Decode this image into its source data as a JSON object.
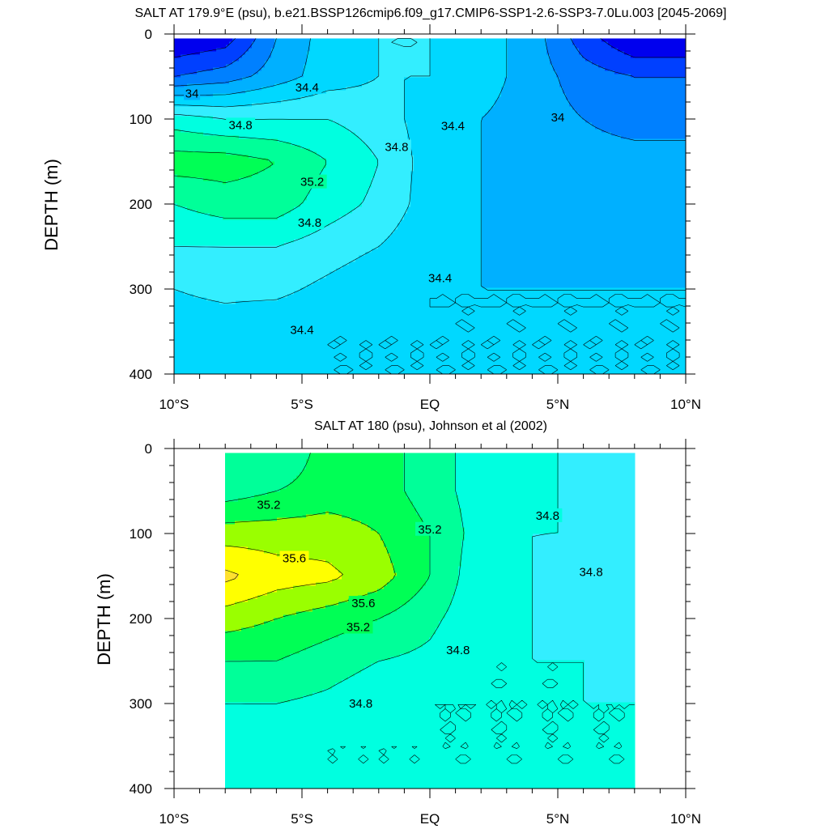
{
  "colors": {
    "c33_6": "#0000ee",
    "c33_8": "#0040ff",
    "c34_0": "#0080ff",
    "c34_2": "#00b0ff",
    "c34_4": "#00d8ff",
    "c34_6": "#33eeff",
    "c34_8": "#00ffe0",
    "c35_0": "#00ff99",
    "c35_2": "#00ff55",
    "c35_4": "#9aff00",
    "c35_6": "#ffff00",
    "c35_8": "#ffe030",
    "c36_0": "#ffc040"
  },
  "chart_data": [
    {
      "type": "contour",
      "title": "SALT AT 179.9°E (psu), b.e21.BSSP126cmip6.f09_g17.CMIP6-SSP1-2.6-SSP3-7.0Lu.003 [2045-2069]",
      "ylabel": "DEPTH (m)",
      "xlabel": "",
      "xlim": [
        -10,
        10
      ],
      "ylim": [
        400,
        0
      ],
      "x_ticks": [
        -10,
        -5,
        0,
        5,
        10
      ],
      "x_tick_labels": [
        "10°S",
        "5°S",
        "EQ",
        "5°N",
        "10°N"
      ],
      "y_ticks": [
        0,
        100,
        200,
        300,
        400
      ],
      "y_tick_labels": [
        "0",
        "100",
        "200",
        "300",
        "400"
      ],
      "x": [
        -10,
        -8,
        -6,
        -4,
        -2,
        0,
        2,
        4,
        6,
        8,
        10
      ],
      "depth": [
        5,
        50,
        100,
        150,
        200,
        250,
        300,
        350,
        400
      ],
      "salinity": [
        [
          33.6,
          33.7,
          34.2,
          34.5,
          34.6,
          34.6,
          34.5,
          34.3,
          33.9,
          33.6,
          33.6
        ],
        [
          34.0,
          34.1,
          34.3,
          34.5,
          34.6,
          34.6,
          34.5,
          34.3,
          34.1,
          34.0,
          34.0
        ],
        [
          34.9,
          34.8,
          34.8,
          34.8,
          34.7,
          34.5,
          34.4,
          34.3,
          34.2,
          34.1,
          34.1
        ],
        [
          35.3,
          35.3,
          35.2,
          35.0,
          34.8,
          34.5,
          34.4,
          34.35,
          34.3,
          34.3,
          34.3
        ],
        [
          35.0,
          35.1,
          35.1,
          34.9,
          34.75,
          34.5,
          34.4,
          34.35,
          34.35,
          34.3,
          34.3
        ],
        [
          34.8,
          34.8,
          34.8,
          34.7,
          34.6,
          34.45,
          34.4,
          34.35,
          34.35,
          34.3,
          34.35
        ],
        [
          34.6,
          34.65,
          34.65,
          34.55,
          34.45,
          34.4,
          34.4,
          34.4,
          34.4,
          34.4,
          34.4
        ],
        [
          34.5,
          34.5,
          34.45,
          34.4,
          34.4,
          34.4,
          34.4,
          34.4,
          34.4,
          34.4,
          34.4
        ],
        [
          34.4,
          34.4,
          34.4,
          34.4,
          34.4,
          34.4,
          34.4,
          34.4,
          34.4,
          34.4,
          34.4
        ]
      ],
      "levels": [
        33.6,
        33.8,
        34.0,
        34.2,
        34.4,
        34.6,
        34.8,
        35.0,
        35.2,
        35.4
      ],
      "contour_labels": [
        {
          "text": "34",
          "x": -9.3,
          "depth": 70
        },
        {
          "text": "34.4",
          "x": -4.8,
          "depth": 63
        },
        {
          "text": "34.8",
          "x": -7.4,
          "depth": 107
        },
        {
          "text": "35.2",
          "x": -4.6,
          "depth": 174
        },
        {
          "text": "34.8",
          "x": -1.3,
          "depth": 133
        },
        {
          "text": "34.4",
          "x": 0.9,
          "depth": 108
        },
        {
          "text": "34",
          "x": 5.0,
          "depth": 98
        },
        {
          "text": "34.8",
          "x": -4.7,
          "depth": 222
        },
        {
          "text": "34.4",
          "x": 0.4,
          "depth": 287
        },
        {
          "text": "34.4",
          "x": -5.0,
          "depth": 348
        }
      ]
    },
    {
      "type": "contour",
      "title": "SALT AT 180 (psu), Johnson et al (2002)",
      "ylabel": "DEPTH (m)",
      "xlabel": "",
      "xlim": [
        -10,
        10
      ],
      "ylim": [
        400,
        0
      ],
      "x_ticks": [
        -10,
        -5,
        0,
        5,
        10
      ],
      "x_tick_labels": [
        "10°S",
        "5°S",
        "EQ",
        "5°N",
        "10°N"
      ],
      "y_ticks": [
        0,
        100,
        200,
        300,
        400
      ],
      "y_tick_labels": [
        "0",
        "100",
        "200",
        "300",
        "400"
      ],
      "data_x_range": [
        -8,
        8
      ],
      "x": [
        -8,
        -6,
        -4,
        -2,
        0,
        2,
        4,
        6,
        8
      ],
      "depth": [
        5,
        50,
        100,
        150,
        200,
        250,
        300,
        350,
        400
      ],
      "salinity": [
        [
          35.0,
          35.0,
          35.3,
          35.3,
          35.1,
          34.9,
          34.9,
          34.7,
          34.6
        ],
        [
          35.1,
          35.2,
          35.3,
          35.3,
          35.1,
          34.9,
          34.85,
          34.75,
          34.6
        ],
        [
          35.5,
          35.5,
          35.5,
          35.4,
          35.2,
          34.9,
          34.8,
          34.8,
          34.75
        ],
        [
          35.85,
          35.7,
          35.65,
          35.5,
          35.2,
          34.85,
          34.8,
          34.75,
          34.6
        ],
        [
          35.5,
          35.4,
          35.3,
          35.2,
          35.05,
          34.85,
          34.8,
          34.7,
          34.65
        ],
        [
          35.2,
          35.2,
          35.1,
          35.0,
          34.95,
          34.8,
          34.8,
          34.8,
          34.75
        ],
        [
          35.0,
          35.0,
          34.95,
          34.85,
          34.8,
          34.8,
          34.8,
          34.8,
          34.8
        ],
        [
          34.9,
          34.85,
          34.8,
          34.8,
          34.8,
          34.8,
          34.8,
          34.8,
          34.8
        ],
        [
          34.8,
          34.8,
          34.8,
          34.8,
          34.8,
          34.8,
          34.8,
          34.8,
          34.8
        ]
      ],
      "levels": [
        34.6,
        34.8,
        35.0,
        35.2,
        35.4,
        35.6,
        35.8
      ],
      "contour_labels": [
        {
          "text": "35.2",
          "x": -6.3,
          "depth": 66
        },
        {
          "text": "35.6",
          "x": -5.3,
          "depth": 129
        },
        {
          "text": "35.6",
          "x": -2.6,
          "depth": 182
        },
        {
          "text": "35.2",
          "x": -2.8,
          "depth": 210
        },
        {
          "text": "35.2",
          "x": 0.0,
          "depth": 95
        },
        {
          "text": "34.8",
          "x": 4.6,
          "depth": 79
        },
        {
          "text": "34.8",
          "x": 6.3,
          "depth": 145
        },
        {
          "text": "34.8",
          "x": 1.1,
          "depth": 237
        },
        {
          "text": "34.8",
          "x": -2.7,
          "depth": 300
        }
      ]
    }
  ]
}
